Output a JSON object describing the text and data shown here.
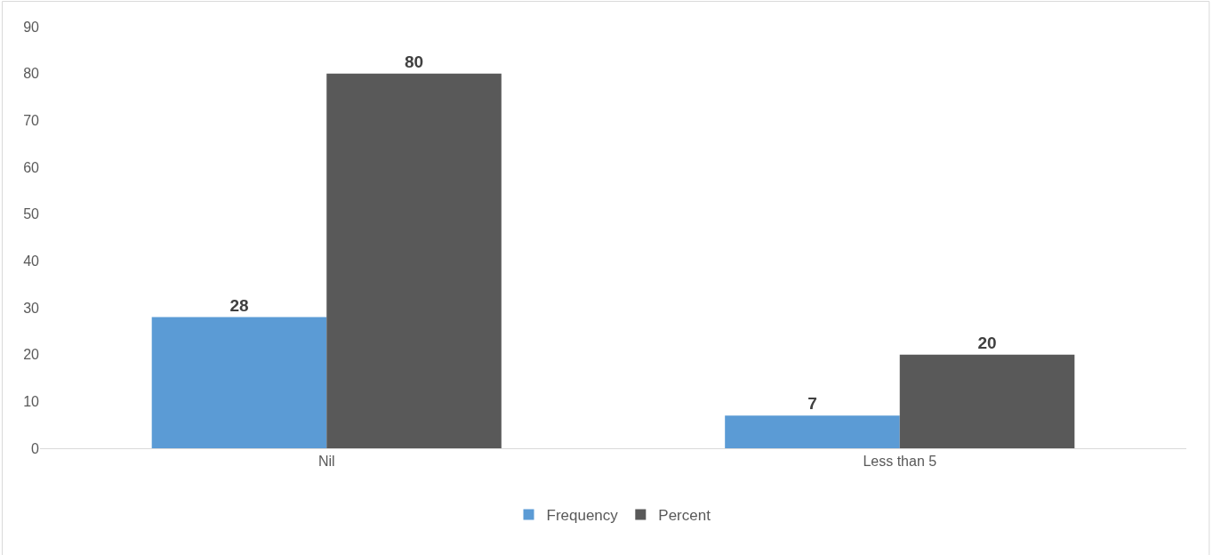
{
  "chart_data": {
    "type": "bar",
    "categories": [
      "Nil",
      "Less than 5"
    ],
    "series": [
      {
        "name": "Frequency",
        "color": "#5b9bd5",
        "values": [
          28,
          7
        ]
      },
      {
        "name": "Percent",
        "color": "#595959",
        "values": [
          80,
          20
        ]
      }
    ],
    "ylim": [
      0,
      90
    ],
    "yticks": [
      0,
      10,
      20,
      30,
      40,
      50,
      60,
      70,
      80,
      90
    ],
    "grid": false,
    "legend": "bottom",
    "data_labels": true
  }
}
